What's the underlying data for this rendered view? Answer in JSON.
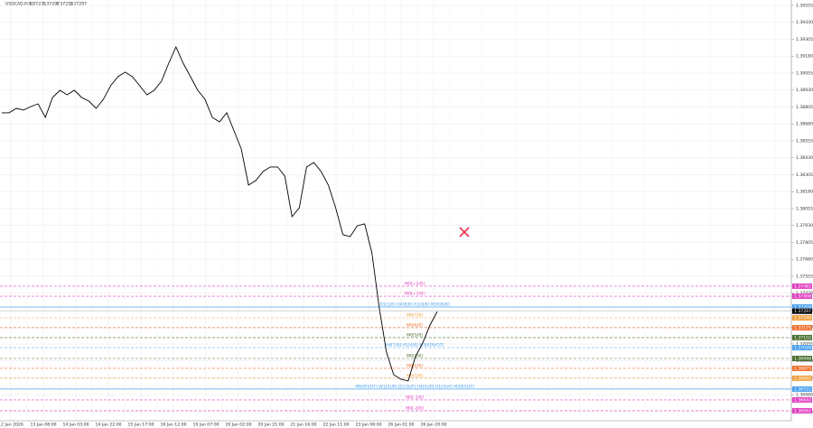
{
  "chart_data": {
    "type": "line",
    "title": "USDCAD,M30",
    "quote": [
      1.37235,
      1.37297,
      1.37218,
      1.37297
    ],
    "color": "#000000",
    "grid": true,
    "ylim": [
      1.36488,
      1.39595
    ],
    "yticks": [
      1.39555,
      {
        "value": 1.3943,
        "label": "1.39430"
      },
      1.39305,
      {
        "value": 1.3918,
        "label": "1.39180"
      },
      1.39055,
      {
        "value": 1.3893,
        "label": "1.38930"
      },
      1.38805,
      {
        "value": 1.3868,
        "label": "1.38680"
      },
      1.38555,
      {
        "value": 1.3843,
        "label": "1.38430"
      },
      1.38305,
      {
        "value": 1.3818,
        "label": "1.38180"
      },
      1.38055,
      {
        "value": 1.3793,
        "label": "1.37930"
      },
      1.37805,
      {
        "value": 1.3768,
        "label": "1.37680"
      },
      1.37555,
      {
        "value": 1.3743,
        "label": "1.37430"
      },
      1.37305,
      {
        "value": 1.3718,
        "label": "1.37180"
      },
      1.37055,
      {
        "value": 1.3693,
        "label": "1.36930"
      },
      1.36805,
      {
        "value": 1.3668,
        "label": "1.36680"
      },
      1.36555
    ],
    "x_labels": [
      "12 Jan 2026",
      "13 Jan 08:00",
      "14 Jan 03:00",
      "14 Jan 22:00",
      "15 Jan 17:00",
      "16 Jan 12:00",
      "19 Jan 07:00",
      "20 Jan 02:00",
      "20 Jan 21:00",
      "21 Jan 16:00",
      "22 Jan 11:00",
      "23 Jan 06:00",
      "26 Jan 01:00",
      "26 Jan 20:00"
    ],
    "values": [
      1.38762,
      1.38762,
      1.38795,
      1.38782,
      1.38808,
      1.38828,
      1.38728,
      1.38875,
      1.38928,
      1.38895,
      1.38928,
      1.38875,
      1.38848,
      1.38795,
      1.38862,
      1.38962,
      1.39028,
      1.39062,
      1.39028,
      1.38962,
      1.38895,
      1.38928,
      1.38995,
      1.39128,
      1.39248,
      1.39128,
      1.39028,
      1.38928,
      1.38862,
      1.38728,
      1.38695,
      1.38762,
      1.38628,
      1.38495,
      1.38228,
      1.38262,
      1.38328,
      1.38362,
      1.38362,
      1.38295,
      1.37995,
      1.38062,
      1.38362,
      1.38395,
      1.38328,
      1.38228,
      1.38062,
      1.37862,
      1.37848,
      1.37928,
      1.37942,
      1.37728,
      1.37328,
      1.36995,
      1.36828,
      1.36795,
      1.36782,
      1.36962,
      1.37062,
      1.37195,
      1.37295
    ],
    "last_price": 1.37297,
    "levels": [
      {
        "label": "M0[+2/8]",
        "value": 1.37482,
        "color": "#e040c0",
        "style": "dashed"
      },
      {
        "label": "M0[+1/8]",
        "value": 1.37408,
        "color": "#e040c0",
        "style": "dashed"
      },
      {
        "label": "D1[1/8] H4[8/8] H1[8/8] M30[8/8]",
        "value": 1.37328,
        "color": "#4aa0f0",
        "style": "solid"
      },
      {
        "label": "M0[7/8]",
        "value": 1.37248,
        "color": "#f0a040",
        "style": "dashed"
      },
      {
        "label": "M0[6/8]",
        "value": 1.37175,
        "color": "#f07030",
        "style": "dashed"
      },
      {
        "label": "M0[5/8]",
        "value": 1.37102,
        "color": "#4a7030",
        "style": "dashed"
      },
      {
        "label": "H4[7/8] H1[4/8] M30[PIVOT]",
        "value": 1.37028,
        "color": "#4aa0f0",
        "style": "dashed"
      },
      {
        "label": "M0[3/8]",
        "value": 1.36948,
        "color": "#4a7030",
        "style": "dashed"
      },
      {
        "label": "M0[2/8]",
        "value": 1.36875,
        "color": "#f07030",
        "style": "dashed"
      },
      {
        "label": "M0[1/8]",
        "value": 1.36802,
        "color": "#f0a040",
        "style": "dashed"
      },
      {
        "label": "MN[PIVOT] W1[SUP] D1[SUP] H4[SUP] H1[SUP] M30[SUP]",
        "value": 1.36722,
        "color": "#4aa0f0",
        "style": "solid"
      },
      {
        "label": "M0[-1/8]",
        "value": 1.36642,
        "color": "#e040c0",
        "style": "dashed"
      },
      {
        "label": "M0[-2/8]",
        "value": 1.36562,
        "color": "#e040c0",
        "style": "dashed"
      }
    ]
  }
}
